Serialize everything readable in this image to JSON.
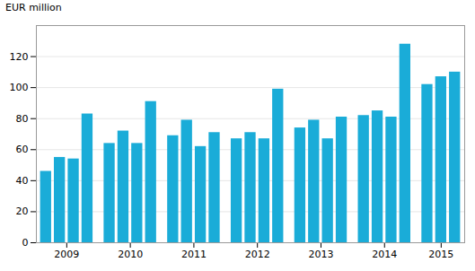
{
  "chart_data": {
    "type": "bar",
    "ylabel": "EUR million",
    "categories": [
      "2009",
      "2010",
      "2011",
      "2012",
      "2013",
      "2014",
      "2015"
    ],
    "values": [
      [
        46,
        55,
        54,
        83
      ],
      [
        64,
        72,
        64,
        91
      ],
      [
        69,
        79,
        62,
        71
      ],
      [
        67,
        71,
        67,
        99
      ],
      [
        74,
        79,
        67,
        81
      ],
      [
        82,
        85,
        81,
        128
      ],
      [
        102,
        107,
        110
      ]
    ],
    "color": "#1aacd8",
    "ylim": [
      0,
      140
    ],
    "yticks": [
      0,
      20,
      40,
      60,
      80,
      100,
      120
    ],
    "grid": true
  }
}
